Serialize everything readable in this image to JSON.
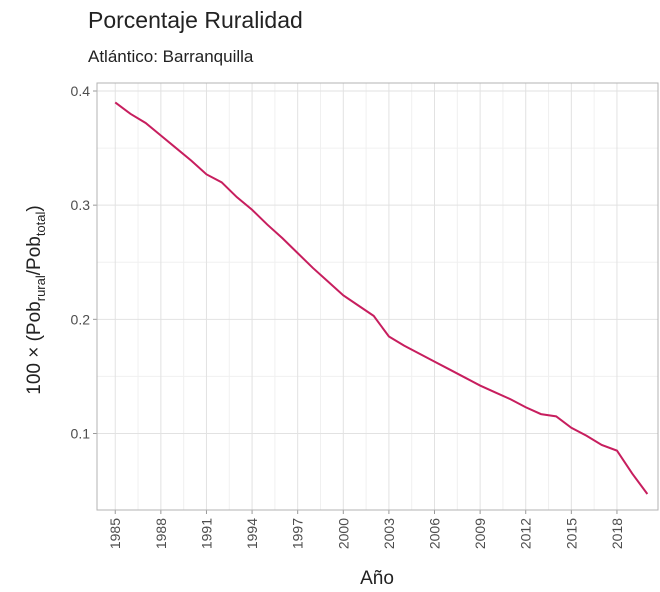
{
  "chart_data": {
    "type": "line",
    "title": "Porcentaje Ruralidad",
    "subtitle": "Atlántico: Barranquilla",
    "x_label": "Año",
    "y_label": [
      "100 × (Pob",
      "rural",
      "/Pob",
      "total",
      ")"
    ],
    "x": [
      1985,
      1986,
      1987,
      1988,
      1989,
      1990,
      1991,
      1992,
      1993,
      1994,
      1995,
      1996,
      1997,
      1998,
      1999,
      2000,
      2001,
      2002,
      2003,
      2004,
      2005,
      2006,
      2007,
      2008,
      2009,
      2010,
      2011,
      2012,
      2013,
      2014,
      2015,
      2016,
      2017,
      2018,
      2019,
      2020
    ],
    "series": [
      {
        "color": "#c71e5e",
        "values": [
          0.39,
          0.38,
          0.372,
          0.361,
          0.35,
          0.339,
          0.327,
          0.32,
          0.307,
          0.296,
          0.283,
          0.271,
          0.258,
          0.245,
          0.233,
          0.221,
          0.212,
          0.203,
          0.185,
          0.177,
          0.17,
          0.163,
          0.156,
          0.149,
          0.142,
          0.136,
          0.13,
          0.123,
          0.117,
          0.115,
          0.105,
          0.098,
          0.09,
          0.085,
          0.065,
          0.047
        ]
      }
    ],
    "xlim": [
      1983.8,
      2020.7
    ],
    "ylim": [
      0.033,
      0.407
    ],
    "xticks": [
      1985,
      1988,
      1991,
      1994,
      1997,
      2000,
      2003,
      2006,
      2009,
      2012,
      2015,
      2018
    ],
    "yticks": [
      0.1,
      0.2,
      0.3,
      0.4
    ],
    "grid": true
  }
}
